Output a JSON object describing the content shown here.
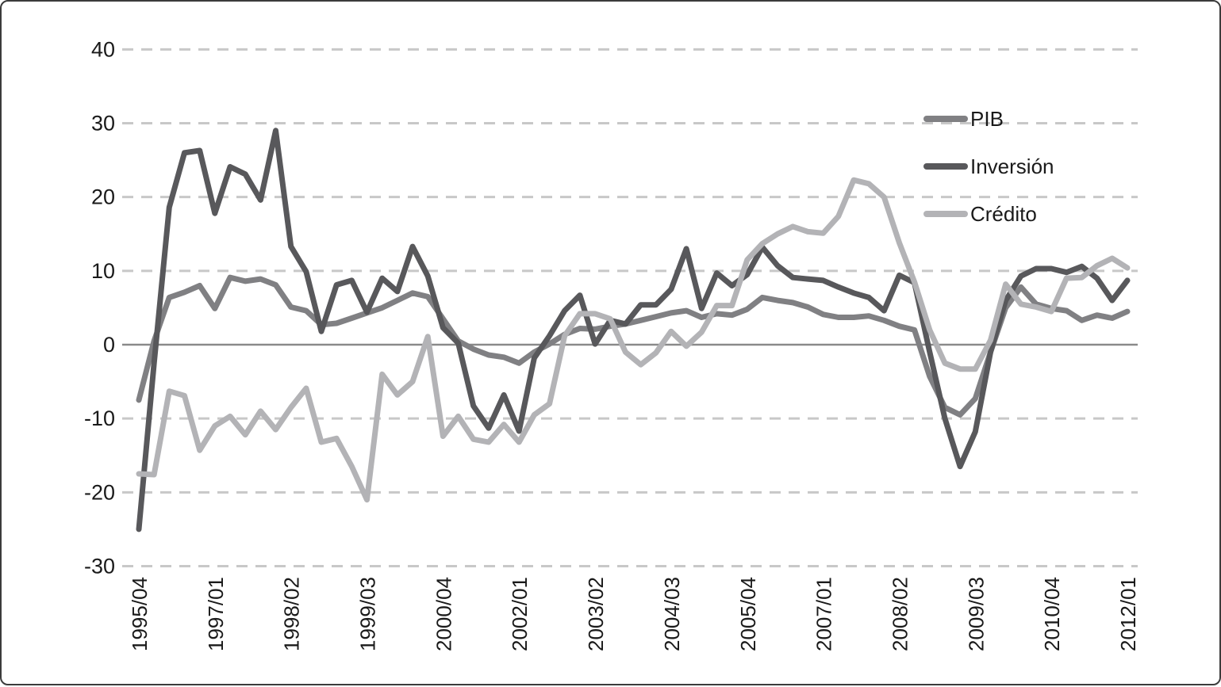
{
  "chart_data": {
    "type": "line",
    "title": "",
    "xlabel": "",
    "ylabel": "",
    "legend_position": "inside-right",
    "grid": "horizontal dashed gridlines, solid zero line",
    "x_axis": {
      "tick_every": 5,
      "tick_labels": [
        "1995/04",
        "1997/01",
        "1998/02",
        "1999/03",
        "2000/04",
        "2002/01",
        "2003/02",
        "2004/03",
        "2005/04",
        "2007/01",
        "2008/02",
        "2009/03",
        "2010/04",
        "2012/01"
      ],
      "categories": [
        "1995/04",
        "1996/01",
        "1996/02",
        "1996/03",
        "1996/04",
        "1997/01",
        "1997/02",
        "1997/03",
        "1997/04",
        "1998/01",
        "1998/02",
        "1998/03",
        "1998/04",
        "1999/01",
        "1999/02",
        "1999/03",
        "1999/04",
        "2000/01",
        "2000/02",
        "2000/03",
        "2000/04",
        "2001/01",
        "2001/02",
        "2001/03",
        "2001/04",
        "2002/01",
        "2002/02",
        "2002/03",
        "2002/04",
        "2003/01",
        "2003/02",
        "2003/03",
        "2003/04",
        "2004/01",
        "2004/02",
        "2004/03",
        "2004/04",
        "2005/01",
        "2005/02",
        "2005/03",
        "2005/04",
        "2006/01",
        "2006/02",
        "2006/03",
        "2006/04",
        "2007/01",
        "2007/02",
        "2007/03",
        "2007/04",
        "2008/01",
        "2008/02",
        "2008/03",
        "2008/04",
        "2009/01",
        "2009/02",
        "2009/03",
        "2009/04",
        "2010/01",
        "2010/02",
        "2010/03",
        "2010/04",
        "2011/01",
        "2011/02",
        "2011/03",
        "2011/04",
        "2012/01"
      ]
    },
    "y_axis": {
      "min": -30,
      "max": 40,
      "ticks": [
        40,
        30,
        20,
        10,
        0,
        -10,
        -20,
        -30
      ]
    },
    "series": [
      {
        "key": "pib",
        "name": "PIB",
        "color": "#808083",
        "values": [
          -7.5,
          0.5,
          6.4,
          7.1,
          8.0,
          4.9,
          9.1,
          8.6,
          8.9,
          8.1,
          5.1,
          4.6,
          2.7,
          2.9,
          3.6,
          4.3,
          5.0,
          6.0,
          7.0,
          6.5,
          3.5,
          0.5,
          -0.6,
          -1.4,
          -1.7,
          -2.5,
          -1.0,
          0.1,
          1.4,
          2.2,
          2.1,
          2.5,
          2.8,
          3.3,
          3.8,
          4.3,
          4.6,
          3.7,
          4.2,
          4.0,
          4.8,
          6.4,
          6.0,
          5.7,
          5.1,
          4.1,
          3.7,
          3.7,
          3.9,
          3.3,
          2.5,
          2.0,
          -4.3,
          -8.5,
          -9.5,
          -7.3,
          -1.0,
          5.0,
          7.8,
          5.5,
          4.9,
          4.6,
          3.3,
          4.0,
          3.6,
          4.5
        ]
      },
      {
        "key": "inversion",
        "name": "Inversión",
        "color": "#58585b",
        "values": [
          -25.0,
          -2.5,
          18.6,
          26.0,
          26.3,
          17.8,
          24.1,
          23.1,
          19.6,
          29.0,
          13.3,
          9.9,
          1.8,
          8.1,
          8.7,
          4.4,
          9.0,
          7.2,
          13.3,
          9.3,
          2.3,
          0.2,
          -8.3,
          -11.3,
          -6.8,
          -11.7,
          -1.8,
          1.2,
          4.6,
          6.7,
          0.1,
          3.3,
          2.8,
          5.4,
          5.4,
          7.5,
          13.0,
          4.9,
          9.7,
          8.0,
          9.5,
          13.2,
          10.7,
          9.1,
          8.9,
          8.7,
          7.8,
          7.0,
          6.4,
          4.6,
          9.4,
          8.4,
          -1.0,
          -10.0,
          -16.5,
          -11.8,
          -1.0,
          6.0,
          9.3,
          10.3,
          10.3,
          9.8,
          10.6,
          9.0,
          6.0,
          8.7
        ]
      },
      {
        "key": "credito",
        "name": "Crédito",
        "color": "#b3b3b6",
        "values": [
          -17.5,
          -17.6,
          -6.3,
          -6.9,
          -14.3,
          -11.0,
          -9.7,
          -12.2,
          -9.0,
          -11.5,
          -8.5,
          -5.9,
          -13.2,
          -12.7,
          -16.5,
          -21.0,
          -4.0,
          -6.8,
          -5.0,
          1.1,
          -12.4,
          -9.7,
          -12.8,
          -13.2,
          -10.8,
          -13.2,
          -9.5,
          -8.0,
          1.2,
          4.2,
          4.2,
          3.5,
          -1.0,
          -2.7,
          -1.1,
          1.8,
          -0.2,
          1.7,
          5.3,
          5.3,
          11.5,
          13.7,
          15.0,
          16.0,
          15.3,
          15.1,
          17.4,
          22.3,
          21.8,
          20.0,
          13.8,
          8.5,
          2.0,
          -2.5,
          -3.3,
          -3.3,
          0.6,
          8.2,
          5.5,
          5.1,
          4.5,
          9.0,
          9.1,
          10.7,
          11.7,
          10.4
        ]
      }
    ]
  },
  "styling": {
    "background": "#ffffff",
    "grid_color": "#c8c8c8",
    "zero_line_color": "#8a8a8a",
    "text_color": "#1a1a1a",
    "border_color": "#3b3b3b"
  }
}
